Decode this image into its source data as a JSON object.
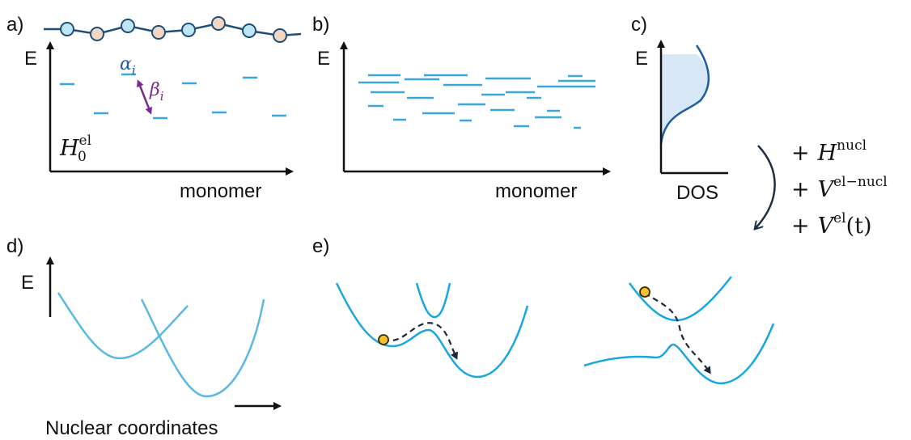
{
  "panels": {
    "a": {
      "tag": "a)",
      "y_axis_label": "E",
      "x_axis_label": "monomer",
      "alpha": {
        "symbol": "α",
        "sub": "i"
      },
      "beta": {
        "symbol": "β",
        "sub": "i"
      },
      "hamiltonian": {
        "base": "H",
        "sup": "el",
        "sub": "0"
      }
    },
    "b": {
      "tag": "b)",
      "y_axis_label": "E",
      "x_axis_label": "monomer"
    },
    "c": {
      "tag": "c)",
      "y_axis_label": "E",
      "x_axis_label": "DOS"
    },
    "d": {
      "tag": "d)",
      "y_axis_label": "E",
      "x_axis_label": "Nuclear coordinates"
    },
    "e": {
      "tag": "e)"
    }
  },
  "additions": [
    {
      "op": "+",
      "base": "H",
      "sup": "nucl",
      "tail": ""
    },
    {
      "op": "+",
      "base": "V",
      "sup": "el−nucl",
      "tail": ""
    },
    {
      "op": "+",
      "base": "V",
      "sup": "el",
      "tail": "(t)"
    }
  ],
  "colors": {
    "level": "#3aa7dc",
    "curve": "#3fb6e6",
    "chain": "#1f4e79",
    "bead_blue": "#bfe6f5",
    "bead_peach": "#f4d7c3",
    "coupling": "#7a2a90",
    "alpha_text": "#1f5fa0",
    "dos_fill": "#d7e7f6",
    "ball": "#f2c22a"
  }
}
